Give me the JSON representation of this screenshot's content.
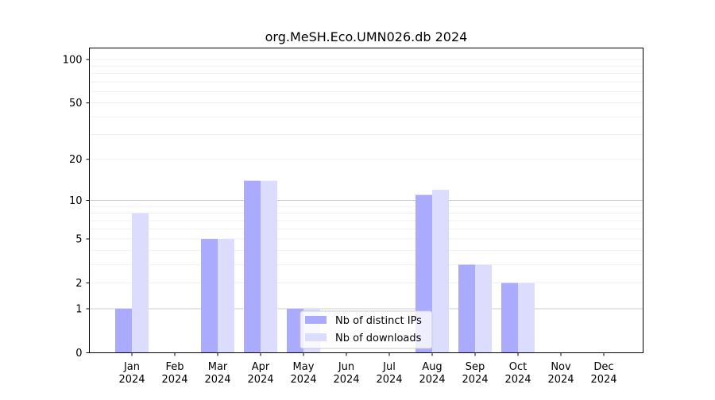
{
  "chart_data": {
    "type": "bar",
    "title": "org.MeSH.Eco.UMN026.db 2024",
    "xlabel": "",
    "ylabel": "",
    "categories": [
      [
        "Jan",
        "2024"
      ],
      [
        "Feb",
        "2024"
      ],
      [
        "Mar",
        "2024"
      ],
      [
        "Apr",
        "2024"
      ],
      [
        "May",
        "2024"
      ],
      [
        "Jun",
        "2024"
      ],
      [
        "Jul",
        "2024"
      ],
      [
        "Aug",
        "2024"
      ],
      [
        "Sep",
        "2024"
      ],
      [
        "Oct",
        "2024"
      ],
      [
        "Nov",
        "2024"
      ],
      [
        "Dec",
        "2024"
      ]
    ],
    "series": [
      {
        "name": "Nb of distinct IPs",
        "color": "#aaaaff",
        "values": [
          1,
          0,
          5,
          14,
          1,
          0,
          0,
          11,
          3,
          2,
          0,
          0
        ]
      },
      {
        "name": "Nb of downloads",
        "color": "#dcdcff",
        "values": [
          8,
          0,
          5,
          14,
          1,
          0,
          0,
          12,
          3,
          2,
          0,
          0
        ]
      }
    ],
    "yscale": "log(1+y)",
    "ylim": [
      0,
      120
    ],
    "yticks": [
      0,
      1,
      2,
      5,
      10,
      20,
      50,
      100
    ],
    "grid": true,
    "legend": "lower-center"
  }
}
